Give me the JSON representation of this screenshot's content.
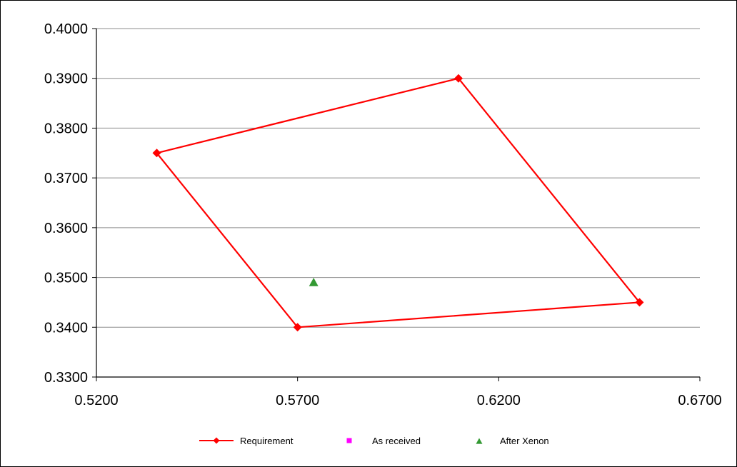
{
  "chart_data": {
    "type": "scatter",
    "title": "",
    "xlabel": "",
    "ylabel": "",
    "xlim": [
      0.52,
      0.67
    ],
    "ylim": [
      0.33,
      0.4
    ],
    "x_ticks": [
      "0.5200",
      "0.5700",
      "0.6200",
      "0.6700"
    ],
    "y_ticks": [
      "0.3300",
      "0.3400",
      "0.3500",
      "0.3600",
      "0.3700",
      "0.3800",
      "0.3900",
      "0.4000"
    ],
    "grid": "horizontal",
    "legend_position": "bottom",
    "series": [
      {
        "name": "Requirement",
        "style": "line-with-diamond-markers",
        "color": "#ff0000",
        "closed": true,
        "points": [
          [
            0.535,
            0.375
          ],
          [
            0.61,
            0.39
          ],
          [
            0.655,
            0.345
          ],
          [
            0.57,
            0.34
          ],
          [
            0.535,
            0.375
          ]
        ]
      },
      {
        "name": "As received",
        "style": "square-markers",
        "color": "#ff00ff",
        "points": []
      },
      {
        "name": "After Xenon",
        "style": "triangle-markers",
        "color": "#339933",
        "points": [
          [
            0.574,
            0.349
          ]
        ]
      }
    ]
  }
}
